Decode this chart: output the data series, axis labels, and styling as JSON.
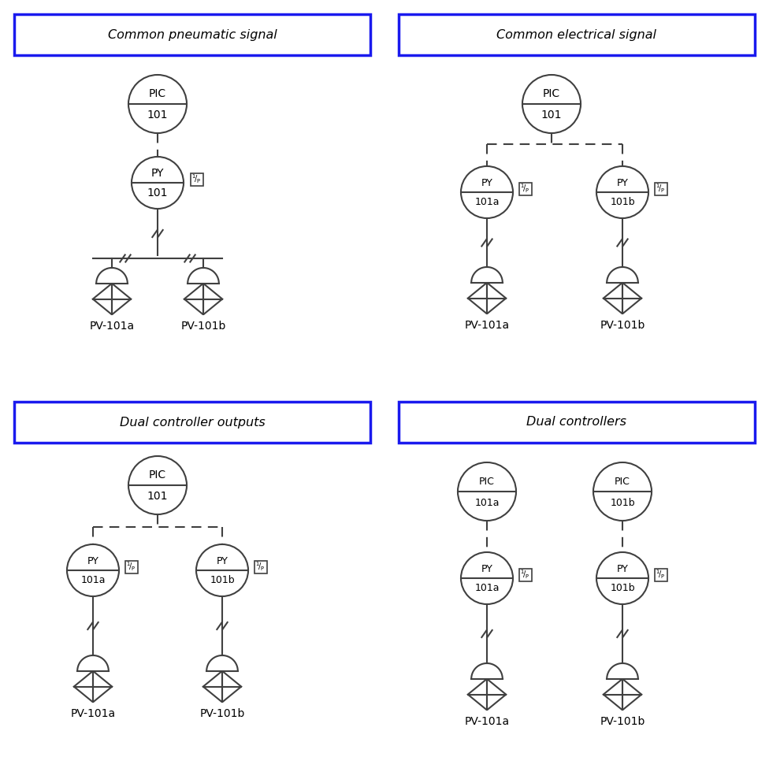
{
  "title_color": "#000000",
  "line_color": "#404040",
  "bg_color": "#ffffff",
  "box_border_color": "#1a1aee",
  "fig_w": 9.76,
  "fig_h": 9.94,
  "dpi": 100,
  "titles": [
    "Common pneumatic signal",
    "Common electrical signal",
    "Dual controller outputs",
    "Dual controllers"
  ]
}
